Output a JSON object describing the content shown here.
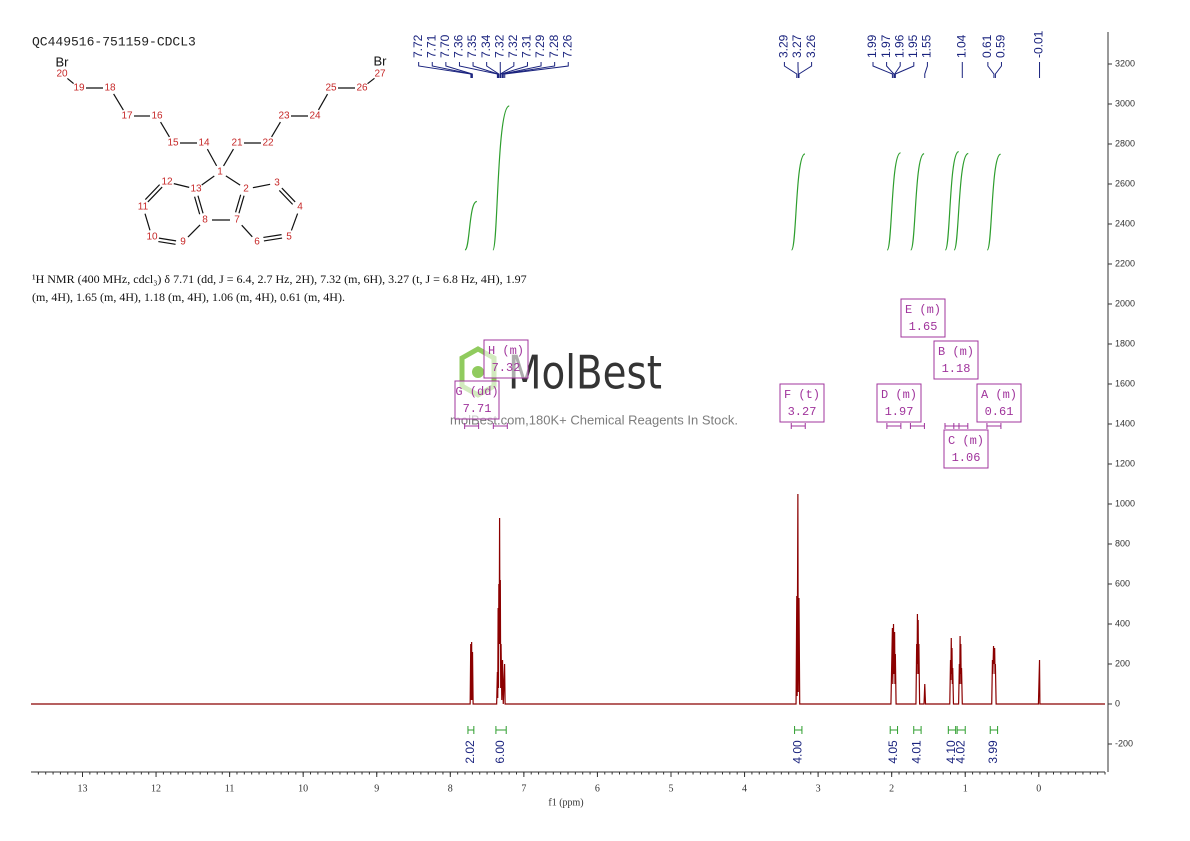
{
  "chart_data": {
    "type": "line",
    "title": "QC449516-751159-CDCL3",
    "description": [
      "¹H NMR (400 MHz, cdcl₃) δ 7.71 (dd, J = 6.4, 2.7 Hz, 2H), 7.32 (m, 6H), 3.27 (t, J = 6.8 Hz, 4H), 1.97",
      "(m, 4H), 1.65 (m, 4H), 1.18 (m, 4H), 1.06 (m, 4H), 0.61 (m, 4H)."
    ],
    "xlabel": "f1 (ppm)",
    "xlim": [
      13.7,
      -0.9
    ],
    "xticks": [
      13,
      12,
      11,
      10,
      9,
      8,
      7,
      6,
      5,
      4,
      3,
      2,
      1,
      0
    ],
    "ylim": [
      -340,
      3360
    ],
    "yticks": [
      -200,
      0,
      200,
      400,
      600,
      800,
      1000,
      1200,
      1400,
      1600,
      1800,
      2000,
      2200,
      2400,
      2600,
      2800,
      3000,
      3200
    ],
    "color": "#8b0000",
    "x": [
      13.7,
      7.73,
      7.722,
      7.716,
      7.71,
      7.704,
      7.698,
      7.69,
      7.37,
      7.36,
      7.355,
      7.35,
      7.345,
      7.34,
      7.335,
      7.33,
      7.325,
      7.32,
      7.315,
      7.31,
      7.3,
      7.29,
      7.28,
      7.262,
      7.255,
      3.3,
      3.29,
      3.285,
      3.275,
      3.27,
      3.26,
      3.25,
      2.01,
      1.99,
      1.985,
      1.975,
      1.97,
      1.96,
      1.955,
      1.95,
      1.94,
      1.67,
      1.66,
      1.655,
      1.65,
      1.645,
      1.64,
      1.635,
      1.63,
      1.62,
      1.56,
      1.55,
      1.54,
      1.21,
      1.2,
      1.195,
      1.19,
      1.185,
      1.18,
      1.175,
      1.17,
      1.16,
      1.09,
      1.08,
      1.075,
      1.07,
      1.065,
      1.06,
      1.055,
      1.05,
      1.04,
      0.64,
      0.63,
      0.625,
      0.615,
      0.61,
      0.6,
      0.595,
      0.59,
      0.58,
      0.005,
      -0.01,
      -0.015,
      -0.9
    ],
    "values": [
      0,
      0,
      300,
      20,
      310,
      20,
      260,
      0,
      0,
      160,
      30,
      480,
      80,
      600,
      300,
      930,
      300,
      620,
      80,
      300,
      20,
      220,
      0,
      200,
      0,
      0,
      540,
      40,
      1050,
      60,
      530,
      0,
      0,
      380,
      100,
      400,
      150,
      360,
      100,
      250,
      0,
      0,
      300,
      150,
      450,
      200,
      420,
      150,
      300,
      0,
      0,
      100,
      0,
      0,
      220,
      120,
      330,
      150,
      280,
      100,
      180,
      0,
      0,
      200,
      100,
      340,
      150,
      300,
      100,
      180,
      0,
      0,
      220,
      150,
      290,
      200,
      280,
      150,
      200,
      0,
      0,
      220,
      0,
      0
    ],
    "peak_labels": [
      "7.72",
      "7.71",
      "7.70",
      "7.36",
      "7.35",
      "7.34",
      "7.32",
      "7.32",
      "7.31",
      "7.29",
      "7.28",
      "7.26",
      "3.29",
      "3.27",
      "3.26",
      "1.99",
      "1.97",
      "1.96",
      "1.95",
      "1.55",
      "1.04",
      "0.61",
      "0.59",
      "-0.01"
    ],
    "integrals": {
      "color": "#2e9e2e",
      "ranges": [
        [
          7.76,
          7.68
        ],
        [
          7.38,
          7.24
        ],
        [
          3.32,
          3.22
        ],
        [
          2.02,
          1.92
        ],
        [
          1.7,
          1.6
        ],
        [
          1.23,
          1.13
        ],
        [
          1.11,
          1.0
        ],
        [
          0.66,
          0.56
        ]
      ],
      "values": [
        2.02,
        6,
        4,
        4.05,
        4.01,
        4.1,
        4.02,
        3.99
      ],
      "value_labels": [
        "2.02",
        "6.00",
        "4.00",
        "4.05",
        "4.01",
        "4.10",
        "4.02",
        "3.99"
      ]
    },
    "multiplets": [
      {
        "label": "G (dd)",
        "shift": 7.71
      },
      {
        "label": "H (m)",
        "shift": 7.32
      },
      {
        "label": "F (t)",
        "shift": 3.27
      },
      {
        "label": "D (m)",
        "shift": 1.97
      },
      {
        "label": "E (m)",
        "shift": 1.65
      },
      {
        "label": "B (m)",
        "shift": 1.18
      },
      {
        "label": "C (m)",
        "shift": 1.06
      },
      {
        "label": "A (m)",
        "shift": 0.61
      }
    ],
    "watermark": {
      "logo": "MolBest",
      "tagline": "molBest.com,180K+ Chemical Reagents In Stock."
    },
    "molecule": {
      "atoms": [
        "Br",
        "20",
        "19",
        "18",
        "17",
        "16",
        "15",
        "14",
        "1",
        "21",
        "22",
        "23",
        "24",
        "25",
        "26",
        "27",
        "Br",
        "2",
        "3",
        "4",
        "5",
        "6",
        "7",
        "8",
        "9",
        "10",
        "11",
        "12",
        "13"
      ]
    }
  }
}
